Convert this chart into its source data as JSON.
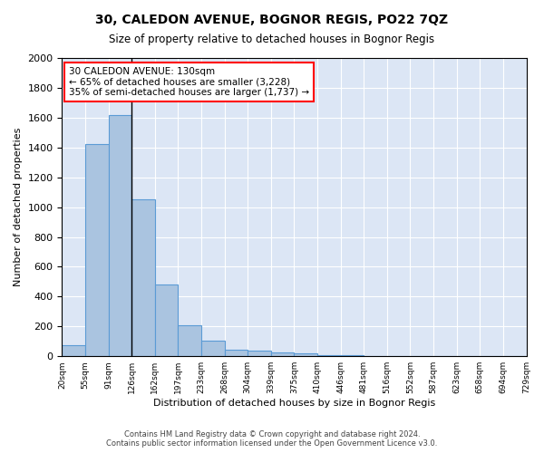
{
  "title": "30, CALEDON AVENUE, BOGNOR REGIS, PO22 7QZ",
  "subtitle": "Size of property relative to detached houses in Bognor Regis",
  "xlabel": "Distribution of detached houses by size in Bognor Regis",
  "ylabel": "Number of detached properties",
  "bar_values": [
    75,
    1420,
    1620,
    1050,
    480,
    205,
    105,
    45,
    35,
    25,
    20,
    10,
    5,
    3,
    2,
    1,
    1,
    0,
    0,
    0
  ],
  "bin_labels": [
    "20sqm",
    "55sqm",
    "91sqm",
    "126sqm",
    "162sqm",
    "197sqm",
    "233sqm",
    "268sqm",
    "304sqm",
    "339sqm",
    "375sqm",
    "410sqm",
    "446sqm",
    "481sqm",
    "516sqm",
    "552sqm",
    "587sqm",
    "623sqm",
    "658sqm",
    "694sqm",
    "729sqm"
  ],
  "bar_color": "#aac4e0",
  "bar_edge_color": "#5b9bd5",
  "annotation_text_line1": "30 CALEDON AVENUE: 130sqm",
  "annotation_text_line2": "← 65% of detached houses are smaller (3,228)",
  "annotation_text_line3": "35% of semi-detached houses are larger (1,737) →",
  "annotation_box_color": "white",
  "annotation_box_edge_color": "red",
  "ylim": [
    0,
    2000
  ],
  "yticks": [
    0,
    200,
    400,
    600,
    800,
    1000,
    1200,
    1400,
    1600,
    1800,
    2000
  ],
  "background_color": "#dce6f5",
  "footer_line1": "Contains HM Land Registry data © Crown copyright and database right 2024.",
  "footer_line2": "Contains public sector information licensed under the Open Government Licence v3.0."
}
